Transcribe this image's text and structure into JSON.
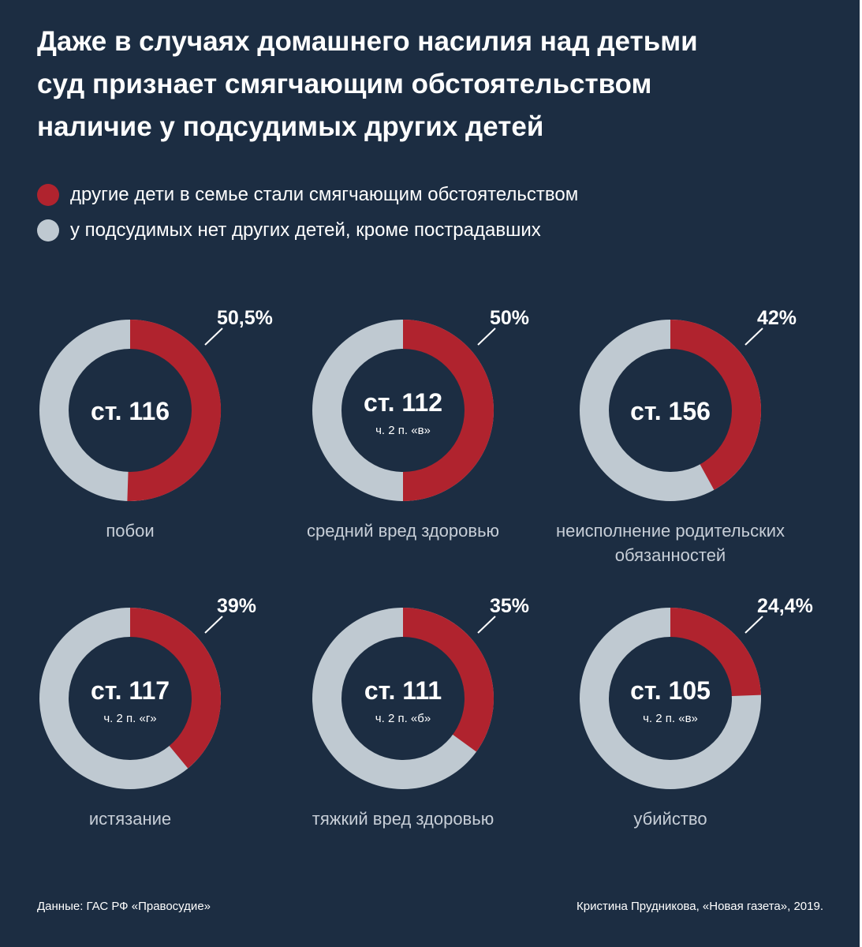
{
  "title_lines": [
    "Даже в случаях домашнего насилия над детьми",
    "суд признает смягчающим обстоятельством",
    "наличие у подсудимых других детей"
  ],
  "legend": [
    {
      "label": "другие дети в семье стали смягчающим обстоятельством",
      "color": "#b0232e"
    },
    {
      "label": "у подсудимых нет других детей, кроме пострадавших",
      "color": "#bfc9d1"
    }
  ],
  "chart_data": {
    "type": "pie",
    "variant": "donut",
    "colors": {
      "highlight": "#b0232e",
      "rest": "#bfc9d1",
      "hole": "#1c2d42"
    },
    "items": [
      {
        "article": "ст. 116",
        "detail": "",
        "category": [
          "побои"
        ],
        "value": 50.5,
        "value_label": "50,5%"
      },
      {
        "article": "ст. 112",
        "detail": "ч. 2 п. «в»",
        "category": [
          "средний вред здоровью"
        ],
        "value": 50,
        "value_label": "50%"
      },
      {
        "article": "ст. 156",
        "detail": "",
        "category": [
          "неисполнение родительских",
          "обязанностей"
        ],
        "value": 42,
        "value_label": "42%"
      },
      {
        "article": "ст. 117",
        "detail": "ч. 2 п. «г»",
        "category": [
          "истязание"
        ],
        "value": 39,
        "value_label": "39%"
      },
      {
        "article": "ст. 111",
        "detail": "ч. 2 п. «б»",
        "category": [
          "тяжкий вред здоровью"
        ],
        "value": 35,
        "value_label": "35%"
      },
      {
        "article": "ст. 105",
        "detail": "ч. 2 п. «в»",
        "category": [
          "убийство"
        ],
        "value": 24.4,
        "value_label": "24,4%"
      }
    ]
  },
  "footer": {
    "source": "Данные: ГАС РФ «Правосудие»",
    "credit": "Кристина Прудникова, «Новая газета», 2019."
  }
}
